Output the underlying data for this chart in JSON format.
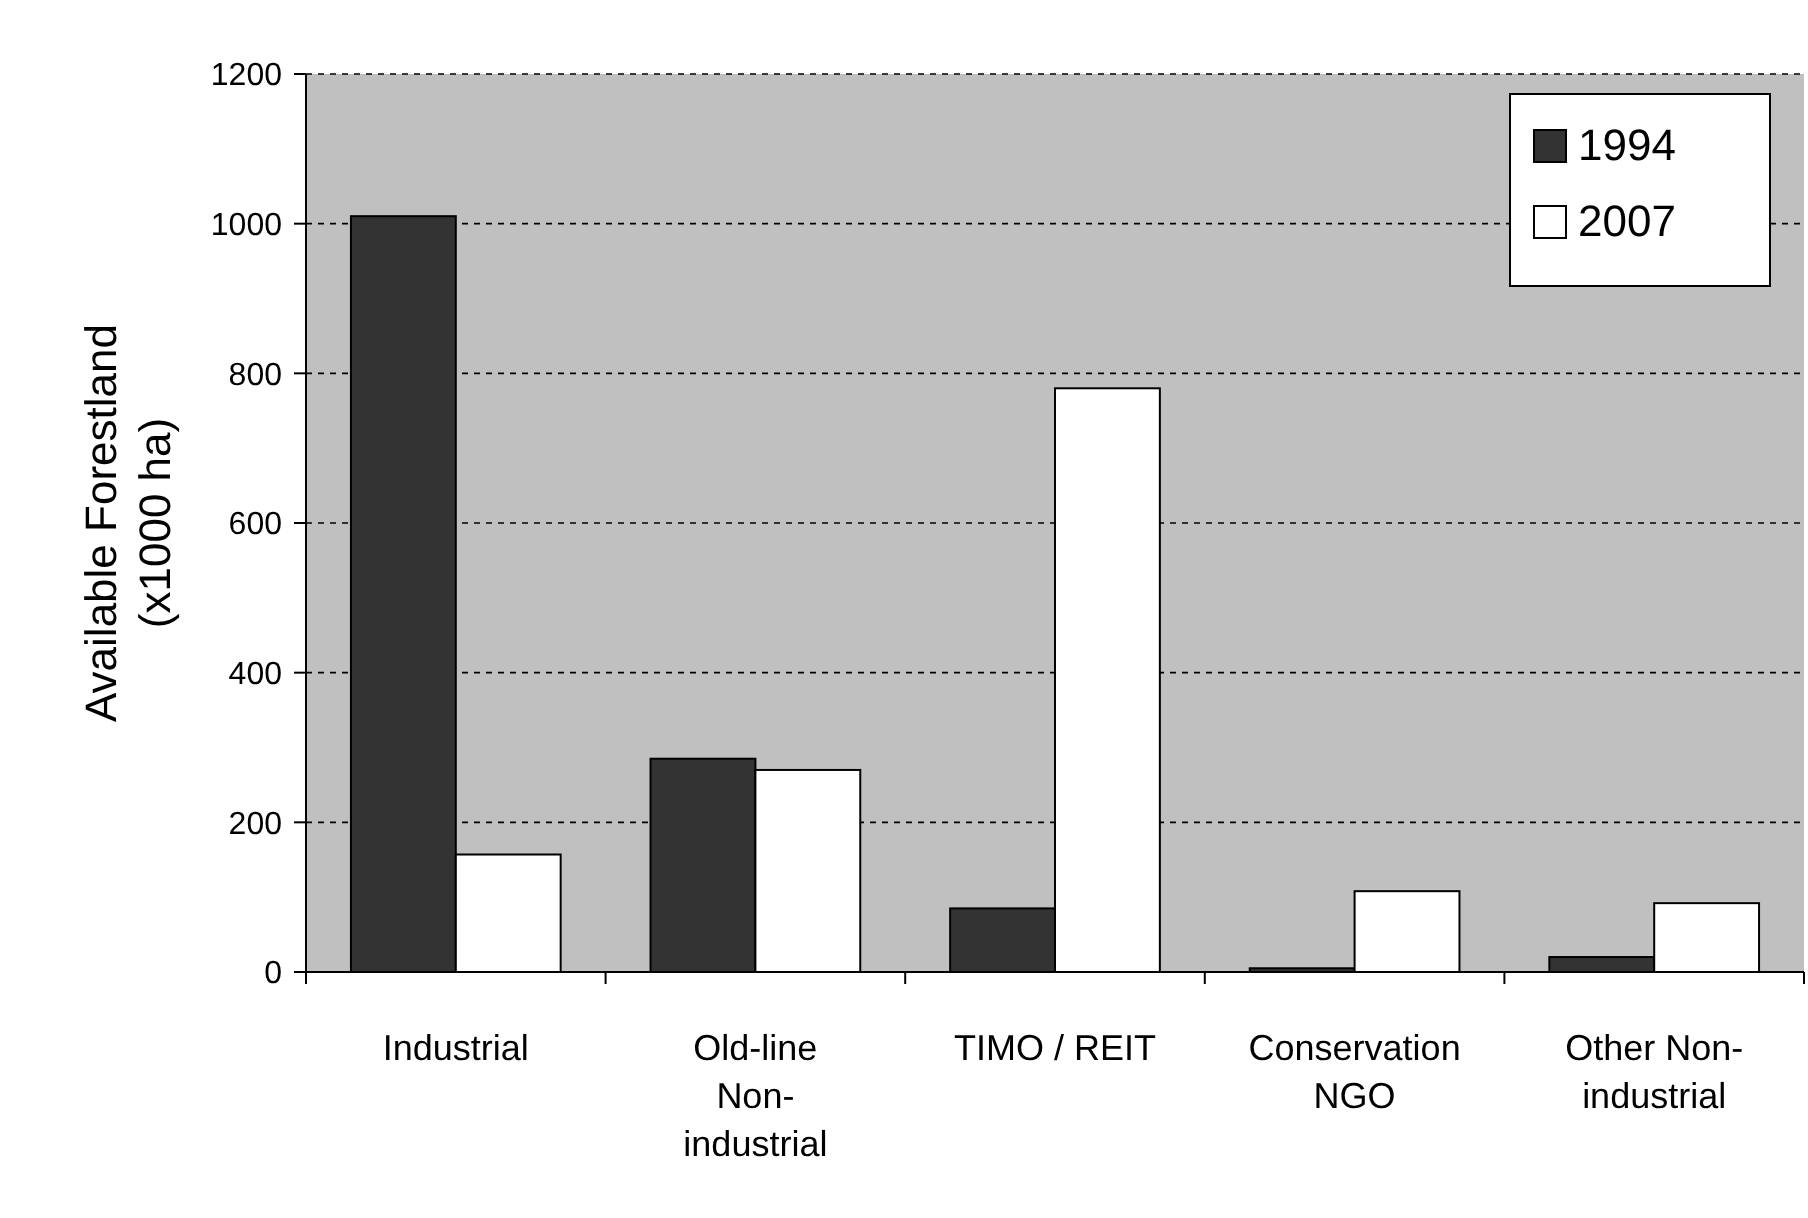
{
  "chart_data": {
    "type": "bar",
    "ylabel": "Available Forestland\n(x1000 ha)",
    "categories": [
      "Industrial",
      "Old-line Non-industrial",
      "TIMO / REIT",
      "Conservation NGO",
      "Other Non-industrial"
    ],
    "series": [
      {
        "name": "1994",
        "color": "#333333",
        "values": [
          1010,
          285,
          85,
          5,
          20
        ]
      },
      {
        "name": "2007",
        "color": "#ffffff",
        "values": [
          157,
          270,
          780,
          108,
          92
        ]
      }
    ],
    "ylim": [
      0,
      1200
    ],
    "yticks": [
      0,
      200,
      400,
      600,
      800,
      1000,
      1200
    ],
    "grid": "y",
    "legend": "top right"
  }
}
